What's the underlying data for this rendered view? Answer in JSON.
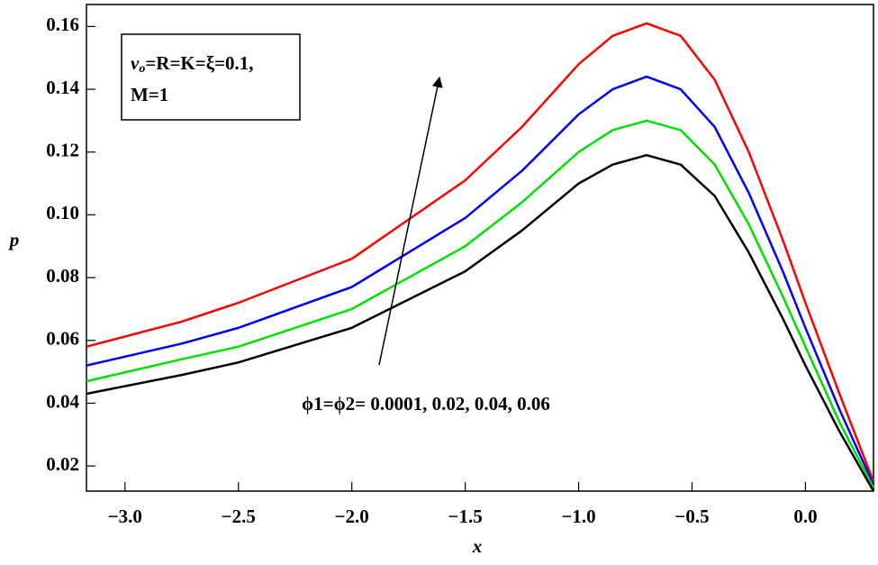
{
  "chart_data": {
    "type": "line",
    "x_label": "x",
    "y_label": "p",
    "annotations": {
      "box": {
        "line1": {
          "base": "v",
          "sub": "o",
          "rest": "=R=K=ξ=0.1,"
        },
        "line2": "M=1"
      },
      "arrow_label": "ϕ1=ϕ2= 0.0001, 0.02, 0.04, 0.06"
    },
    "x": [
      -3.17,
      -2.75,
      -2.5,
      -2.0,
      -1.5,
      -1.25,
      -1.0,
      -0.85,
      -0.7,
      -0.55,
      -0.4,
      -0.25,
      -0.1,
      0.0,
      0.15,
      0.3
    ],
    "series": [
      {
        "color": "#ff0000",
        "values": [
          0.058,
          0.066,
          0.072,
          0.086,
          0.111,
          0.128,
          0.148,
          0.157,
          0.161,
          0.157,
          0.143,
          0.12,
          0.092,
          0.072,
          0.043,
          0.015
        ]
      },
      {
        "color": "#0000ff",
        "values": [
          0.052,
          0.059,
          0.064,
          0.077,
          0.099,
          0.114,
          0.132,
          0.14,
          0.144,
          0.14,
          0.128,
          0.107,
          0.082,
          0.064,
          0.038,
          0.014
        ]
      },
      {
        "color": "#00e000",
        "values": [
          0.047,
          0.054,
          0.058,
          0.07,
          0.09,
          0.104,
          0.12,
          0.127,
          0.13,
          0.127,
          0.116,
          0.097,
          0.074,
          0.058,
          0.034,
          0.013
        ]
      },
      {
        "color": "#000000",
        "values": [
          0.043,
          0.049,
          0.053,
          0.064,
          0.082,
          0.095,
          0.11,
          0.116,
          0.119,
          0.116,
          0.106,
          0.088,
          0.067,
          0.052,
          0.031,
          0.012
        ]
      }
    ],
    "xlim": [
      -3.17,
      0.3
    ],
    "ylim": [
      0.012,
      0.167
    ],
    "xticks": [
      {
        "value": -3,
        "label": "−3.0"
      },
      {
        "value": -2.5,
        "label": "−2.5"
      },
      {
        "value": -2,
        "label": "−2.0"
      },
      {
        "value": -1.5,
        "label": "−1.5"
      },
      {
        "value": -1,
        "label": "−1.0"
      },
      {
        "value": -0.5,
        "label": "−0.5"
      },
      {
        "value": 0,
        "label": "0.0"
      }
    ],
    "yticks": [
      0.02,
      0.04,
      0.06,
      0.08,
      {
        "value": 0.1,
        "label": "0.10"
      },
      0.12,
      0.14,
      0.16
    ]
  }
}
